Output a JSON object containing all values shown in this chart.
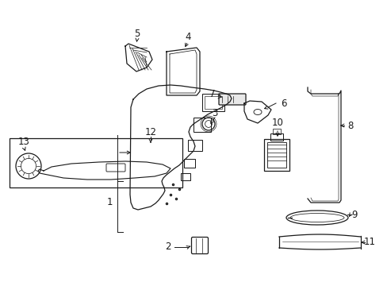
{
  "bg_color": "#ffffff",
  "line_color": "#1a1a1a",
  "fig_width": 4.89,
  "fig_height": 3.6,
  "dpi": 100,
  "label_fs": 8.5
}
